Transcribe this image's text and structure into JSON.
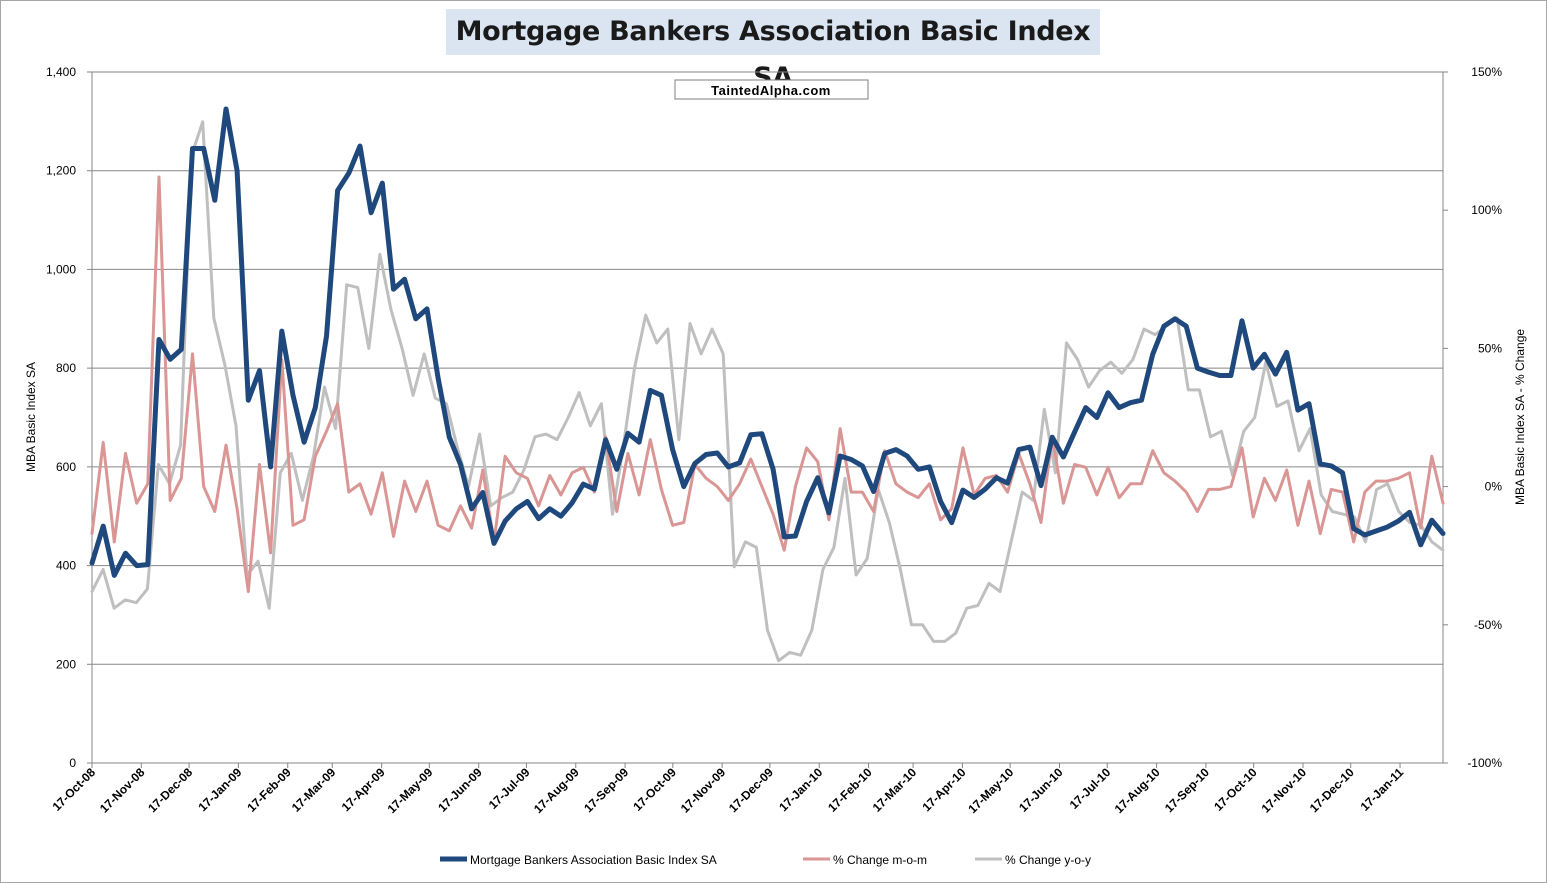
{
  "chart_data": {
    "type": "line",
    "title": "Mortgage Bankers Association Basic Index SA",
    "watermark": "TaintedAlpha.com",
    "y_left": {
      "label": "MBA Basic Index SA",
      "min": 0,
      "max": 1400,
      "ticks": [
        "0",
        "200",
        "400",
        "600",
        "800",
        "1,000",
        "1,200",
        "1,400"
      ]
    },
    "y_right": {
      "label": "MBA Basic Index SA - % Change",
      "min": -100,
      "max": 150,
      "ticks": [
        "-100%",
        "-50%",
        "0%",
        "50%",
        "100%",
        "150%"
      ]
    },
    "x_ticks": [
      "17-Oct-08",
      "17-Nov-08",
      "17-Dec-08",
      "17-Jan-09",
      "17-Feb-09",
      "17-Mar-09",
      "17-Apr-09",
      "17-May-09",
      "17-Jun-09",
      "17-Jul-09",
      "17-Aug-09",
      "17-Sep-09",
      "17-Oct-09",
      "17-Nov-09",
      "17-Dec-09",
      "17-Jan-10",
      "17-Feb-10",
      "17-Mar-10",
      "17-Apr-10",
      "17-May-10",
      "17-Jun-10",
      "17-Jul-10",
      "17-Aug-10",
      "17-Sep-10",
      "17-Oct-10",
      "17-Nov-10",
      "17-Dec-10",
      "17-Jan-11"
    ],
    "x_start": "2008-10-17",
    "x_end": "2011-02-13",
    "grid": "horizontal",
    "legend_position": "bottom",
    "series": [
      {
        "name": "Mortgage Bankers Association Basic Index SA",
        "axis": "left",
        "color": "#1f497d",
        "width": 5,
        "values": [
          405,
          480,
          380,
          425,
          400,
          402,
          858,
          818,
          838,
          1245,
          1245,
          1140,
          1325,
          1200,
          735,
          795,
          600,
          875,
          745,
          650,
          720,
          865,
          1160,
          1195,
          1250,
          1115,
          1175,
          960,
          980,
          900,
          920,
          780,
          660,
          605,
          515,
          548,
          445,
          490,
          515,
          530,
          495,
          515,
          500,
          527,
          565,
          555,
          655,
          595,
          668,
          650,
          755,
          745,
          635,
          560,
          607,
          625,
          628,
          600,
          608,
          665,
          667,
          595,
          458,
          460,
          530,
          578,
          507,
          622,
          615,
          602,
          550,
          627,
          635,
          622,
          595,
          600,
          530,
          487,
          553,
          538,
          555,
          578,
          567,
          635,
          640,
          562,
          660,
          620,
          670,
          720,
          700,
          750,
          720,
          730,
          735,
          828,
          885,
          900,
          885,
          800,
          792,
          785,
          785,
          896,
          800,
          828,
          788,
          832,
          715,
          728,
          606,
          602,
          588,
          475,
          462,
          470,
          478,
          490,
          508,
          442,
          492,
          465
        ]
      },
      {
        "name": "% Change m-o-m",
        "axis": "right",
        "color": "#d99694",
        "width": 3,
        "values": [
          -17,
          16,
          -20,
          12,
          -6,
          1,
          112,
          -5,
          3,
          48,
          0,
          -9,
          15,
          -8,
          -38,
          8,
          -24,
          46,
          -14,
          -12,
          11,
          20,
          30,
          -2,
          1,
          -10,
          5,
          -18,
          2,
          -9,
          2,
          -14,
          -16,
          -7,
          -15,
          6,
          -20,
          11,
          5,
          3,
          -7,
          4,
          -3,
          5,
          7,
          -2,
          18,
          -9,
          12,
          -3,
          17,
          -1,
          -14,
          -13,
          8,
          3,
          0,
          -5,
          1,
          10,
          0,
          -10,
          -23,
          0,
          14,
          9,
          -12,
          21,
          -2,
          -2,
          -9,
          13,
          1,
          -2,
          -4,
          1,
          -12,
          -8,
          14,
          -3,
          3,
          4,
          -2,
          12,
          1,
          -13,
          18,
          -6,
          8,
          7,
          -3,
          7,
          -4,
          1,
          1,
          13,
          5,
          2,
          -2,
          -9,
          -1,
          -1,
          0,
          14,
          -11,
          3,
          -5,
          6,
          -14,
          2,
          -17,
          -1,
          -2,
          -20,
          -2,
          2,
          2,
          3,
          5,
          -15,
          11,
          -6
        ]
      },
      {
        "name": "% Change y-o-y",
        "axis": "right",
        "color": "#bfbfbf",
        "width": 3,
        "values": [
          -38,
          -30,
          -44,
          -41,
          -42,
          -37,
          8,
          1,
          15,
          120,
          132,
          61,
          44,
          22,
          -32,
          -27,
          -44,
          5,
          12,
          -5,
          11,
          36,
          21,
          73,
          72,
          50,
          84,
          64,
          50,
          33,
          48,
          32,
          30,
          14,
          0,
          19,
          -7,
          -4,
          -2,
          6,
          18,
          19,
          17,
          25,
          34,
          22,
          30,
          -10,
          15,
          43,
          62,
          52,
          57,
          17,
          59,
          48,
          57,
          48,
          -29,
          -20,
          -22,
          -52,
          -63,
          -60,
          -61,
          -52,
          -30,
          -22,
          3,
          -32,
          -26,
          -1,
          -13,
          -30,
          -50,
          -50,
          -56,
          -56,
          -53,
          -44,
          -43,
          -35,
          -38,
          -20,
          -2,
          -5,
          28,
          5,
          52,
          46,
          36,
          42,
          45,
          41,
          46,
          57,
          55,
          58,
          61,
          35,
          35,
          18,
          20,
          4,
          20,
          25,
          45,
          29,
          31,
          13,
          21,
          -3,
          -9,
          -10,
          -11,
          -20,
          -1,
          1,
          -9,
          -13,
          -14,
          -20,
          -23
        ]
      }
    ]
  }
}
